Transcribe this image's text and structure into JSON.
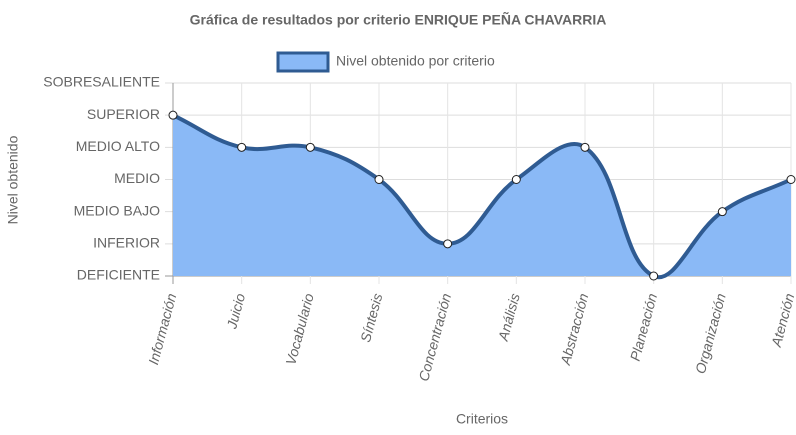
{
  "chart_data": {
    "type": "line",
    "title": "Gráfica de resultados por criterio ENRIQUE PEÑA CHAVARRIA",
    "x_label": "Criterios",
    "y_label": "Nivel obtenido",
    "categories": [
      "Información",
      "Juicio",
      "Vocabulario",
      "Síntesis",
      "Concentración",
      "Análisis",
      "Abstracción",
      "Planeación",
      "Organización",
      "Atención"
    ],
    "series": [
      {
        "name": "Nivel obtenido por criterio",
        "color": "#2f5b92",
        "fill": "#8ab9f6",
        "values": [
          5,
          4,
          4,
          3,
          1,
          3,
          4,
          0,
          2,
          3
        ]
      }
    ],
    "ylim": [
      0,
      6
    ],
    "yticks": [
      {
        "value": 0,
        "label": "DEFICIENTE"
      },
      {
        "value": 1,
        "label": "INFERIOR"
      },
      {
        "value": 2,
        "label": "MEDIO BAJO"
      },
      {
        "value": 3,
        "label": "MEDIO"
      },
      {
        "value": 4,
        "label": "MEDIO ALTO"
      },
      {
        "value": 5,
        "label": "SUPERIOR"
      },
      {
        "value": 6,
        "label": "SOBRESALIENTE"
      }
    ],
    "grid": true,
    "legend": "top"
  }
}
